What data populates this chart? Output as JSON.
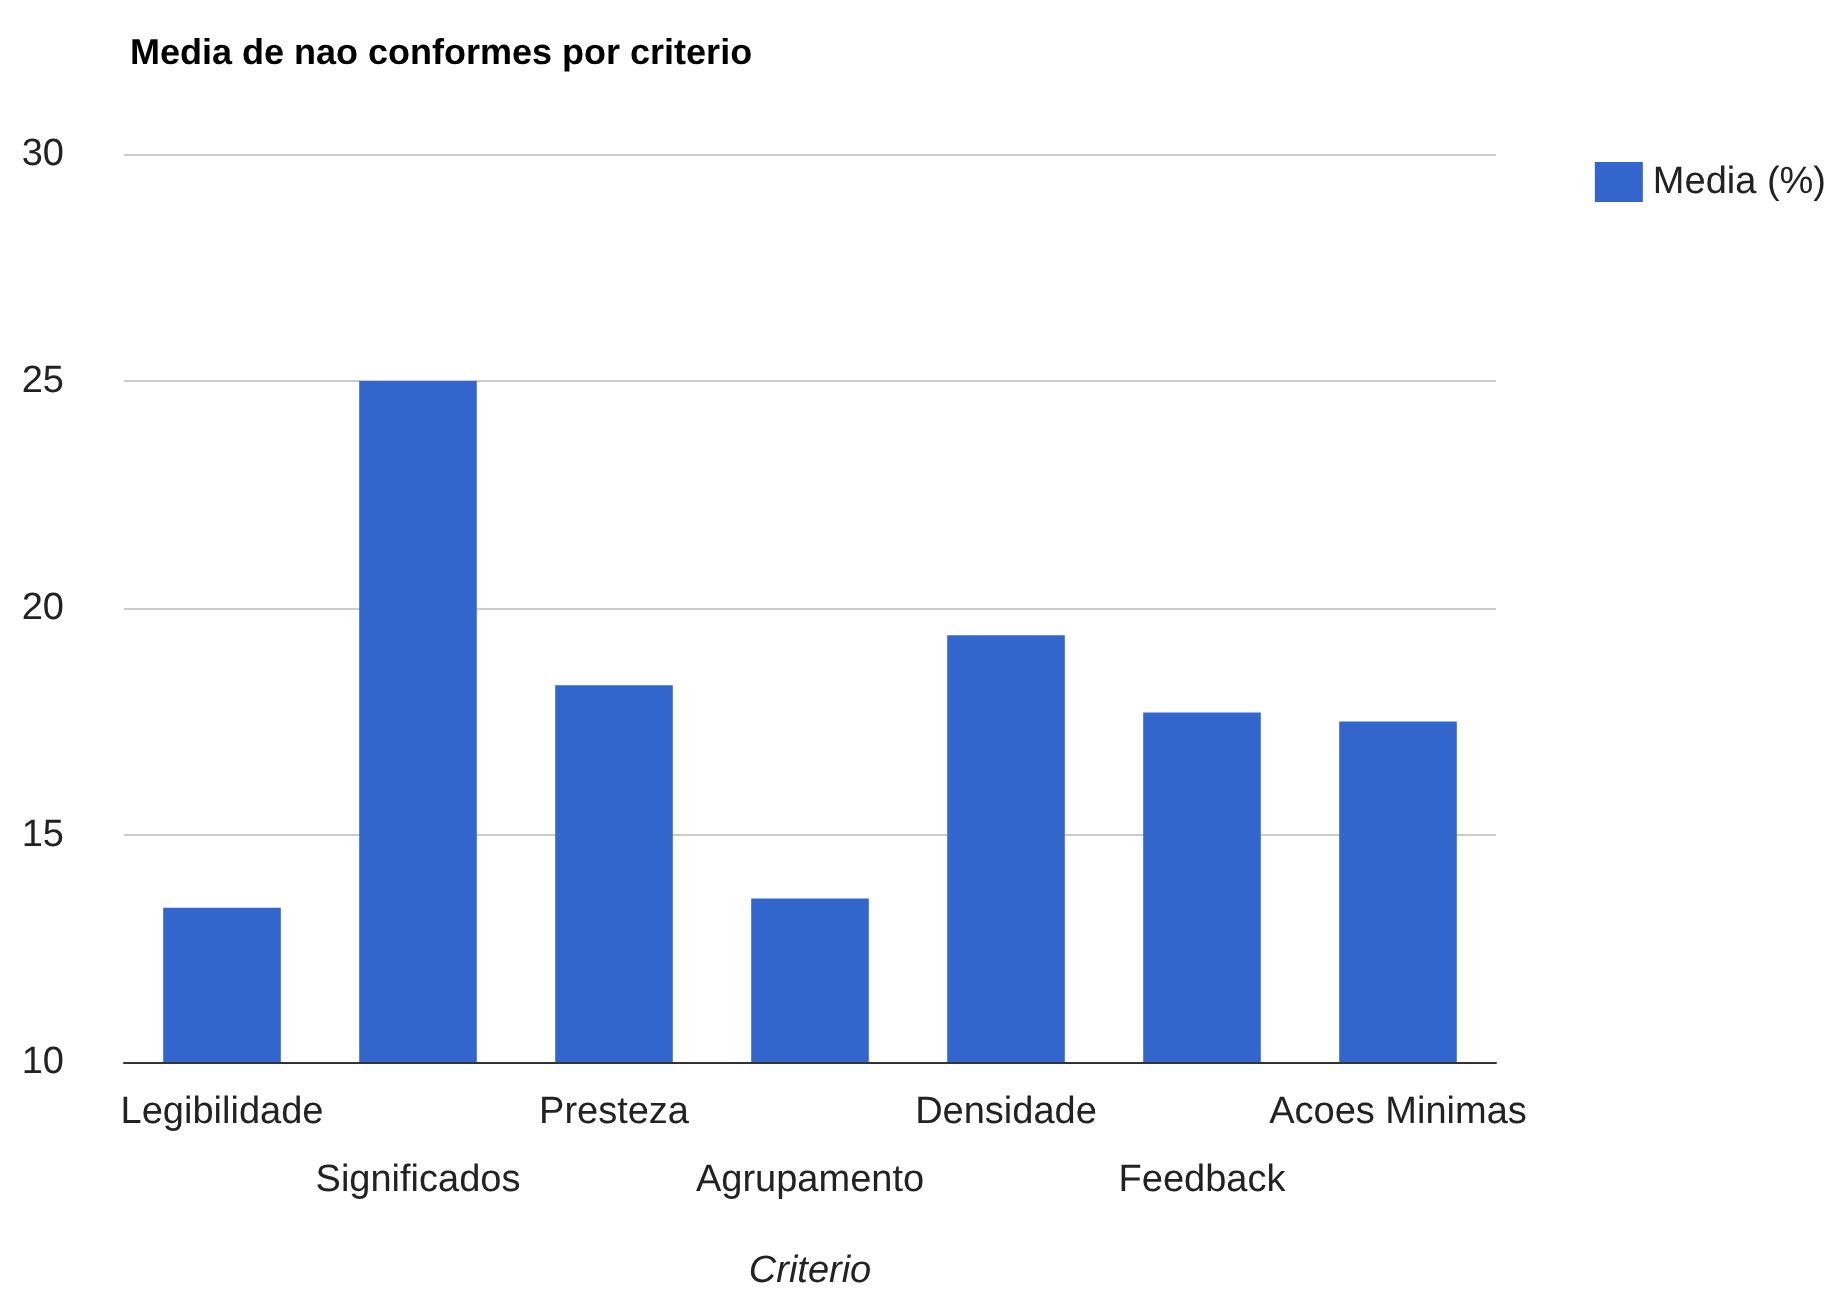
{
  "chart_data": {
    "type": "bar",
    "title": "Media de nao conformes por criterio",
    "xlabel": "Criterio",
    "categories": [
      "Legibilidade",
      "Significados",
      "Presteza",
      "Agrupamento",
      "Densidade",
      "Feedback",
      "Acoes Minimas"
    ],
    "series": [
      {
        "name": "Media (%)",
        "color": "#3366cc",
        "values": [
          13.4,
          25.0,
          18.3,
          13.6,
          19.4,
          17.7,
          17.5
        ]
      }
    ],
    "ylim": [
      10,
      30
    ],
    "yticks": [
      10,
      15,
      20,
      25,
      30
    ],
    "grid": "y",
    "legend": "top right"
  }
}
